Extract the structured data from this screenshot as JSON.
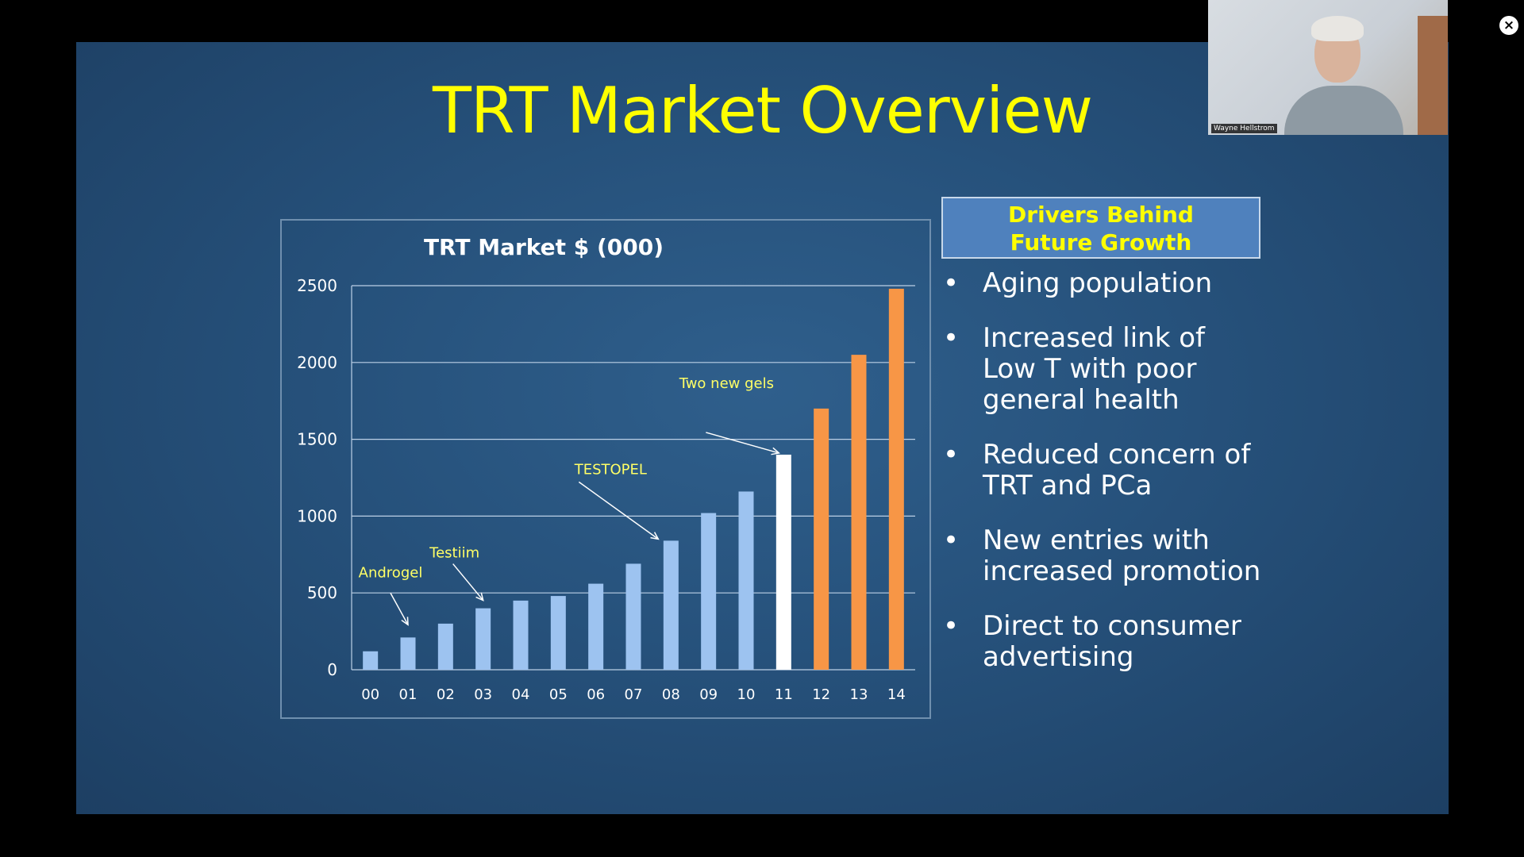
{
  "slide": {
    "title": "TRT Market Overview",
    "drivers_heading_line1": "Drivers Behind",
    "drivers_heading_line2": "Future Growth",
    "bullet_symbol": "•",
    "bullets": [
      {
        "lines": [
          "Aging population"
        ]
      },
      {
        "lines": [
          "Increased link of",
          "Low T with poor",
          "general health"
        ]
      },
      {
        "lines": [
          "Reduced concern of",
          "TRT and PCa"
        ]
      },
      {
        "lines": [
          "New entries with",
          "increased promotion"
        ]
      },
      {
        "lines": [
          "Direct to consumer",
          "advertising"
        ]
      }
    ]
  },
  "chart_data": {
    "type": "bar",
    "title": "TRT Market $ (000)",
    "xlabel": "",
    "ylabel": "",
    "ylim": [
      0,
      2500
    ],
    "yticks": [
      0,
      500,
      1000,
      1500,
      2000,
      2500
    ],
    "grid": true,
    "categories": [
      "00",
      "01",
      "02",
      "03",
      "04",
      "05",
      "06",
      "07",
      "08",
      "09",
      "10",
      "11",
      "12",
      "13",
      "14"
    ],
    "values": [
      120,
      210,
      300,
      400,
      450,
      480,
      560,
      690,
      840,
      1020,
      1160,
      1400,
      1700,
      2050,
      2480
    ],
    "bar_colors": [
      "#9dc3f0",
      "#9dc3f0",
      "#9dc3f0",
      "#9dc3f0",
      "#9dc3f0",
      "#9dc3f0",
      "#9dc3f0",
      "#9dc3f0",
      "#9dc3f0",
      "#9dc3f0",
      "#9dc3f0",
      "#ffffff",
      "#f79646",
      "#f79646",
      "#f79646"
    ],
    "annotations": [
      {
        "text": "Androgel",
        "category": "01"
      },
      {
        "text": "Testiim",
        "category": "03"
      },
      {
        "text": "TESTOPEL",
        "category": "08"
      },
      {
        "text": "Two new gels",
        "category": "11"
      }
    ]
  },
  "video_call": {
    "participant_name": "Wayne Hellstrom",
    "close_symbol": "×"
  }
}
